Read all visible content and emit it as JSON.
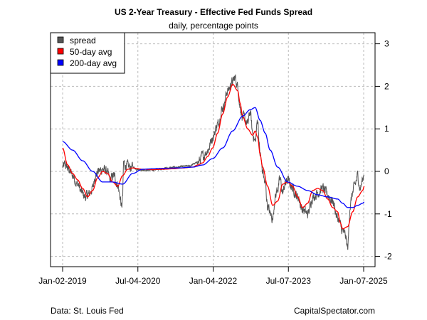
{
  "chart_data": {
    "type": "line",
    "title": "US 2-Year Treasury - Effective Fed Funds Spread",
    "subtitle": "daily, percentage points",
    "xlabel": "",
    "ylabel": "",
    "ylim": [
      -2.25,
      3.25
    ],
    "y_ticks": [
      3,
      2,
      1,
      0,
      -1,
      -2
    ],
    "y_tick_labels": [
      "3",
      "2",
      "1",
      "0",
      "-1",
      "-2"
    ],
    "y_axis_side": "right",
    "x_ticks": [
      2019.0,
      2020.505,
      2022.01,
      2023.515,
      2025.02
    ],
    "x_tick_labels": [
      "Jan-02-2019",
      "Jul-04-2020",
      "Jan-04-2022",
      "Jul-07-2023",
      "Jan-07-2025"
    ],
    "xlim": [
      2018.75,
      2025.25
    ],
    "grid": true,
    "legend_position": "top-left",
    "series": [
      {
        "name": "spread",
        "color": "#555555",
        "x": [
          2019.0,
          2019.05,
          2019.12,
          2019.2,
          2019.3,
          2019.38,
          2019.45,
          2019.52,
          2019.6,
          2019.65,
          2019.72,
          2019.8,
          2019.88,
          2019.95,
          2020.02,
          2020.1,
          2020.15,
          2020.18,
          2020.2,
          2020.22,
          2020.26,
          2020.32,
          2020.4,
          2020.5,
          2020.7,
          2020.9,
          2021.1,
          2021.3,
          2021.5,
          2021.7,
          2021.8,
          2021.9,
          2022.0,
          2022.1,
          2022.2,
          2022.3,
          2022.4,
          2022.45,
          2022.5,
          2022.55,
          2022.6,
          2022.65,
          2022.7,
          2022.75,
          2022.8,
          2022.85,
          2022.9,
          2022.95,
          2023.0,
          2023.05,
          2023.1,
          2023.15,
          2023.2,
          2023.25,
          2023.3,
          2023.35,
          2023.4,
          2023.45,
          2023.5,
          2023.55,
          2023.6,
          2023.7,
          2023.8,
          2023.9,
          2024.0,
          2024.1,
          2024.2,
          2024.3,
          2024.4,
          2024.5,
          2024.6,
          2024.65,
          2024.7,
          2024.75,
          2024.8,
          2024.85,
          2024.9,
          2024.95,
          2025.0,
          2025.03
        ],
        "values": [
          0.1,
          0.15,
          0.05,
          -0.1,
          -0.3,
          -0.5,
          -0.6,
          -0.55,
          -0.4,
          -0.1,
          0.0,
          0.05,
          0.0,
          -0.2,
          -0.1,
          -0.3,
          -0.6,
          -0.85,
          -0.6,
          0.2,
          0.15,
          0.1,
          0.1,
          0.05,
          0.02,
          0.05,
          0.08,
          0.1,
          0.12,
          0.2,
          0.35,
          0.5,
          0.8,
          1.1,
          1.5,
          1.9,
          2.1,
          2.2,
          2.0,
          1.5,
          1.3,
          1.2,
          1.1,
          1.4,
          0.9,
          0.7,
          1.2,
          0.4,
          0.0,
          -0.3,
          -0.8,
          -1.0,
          -1.1,
          -0.6,
          -0.4,
          -0.2,
          -0.5,
          -0.3,
          -0.2,
          -0.3,
          -0.4,
          -0.6,
          -0.9,
          -1.0,
          -0.6,
          -0.5,
          -0.4,
          -0.55,
          -0.7,
          -1.1,
          -1.4,
          -1.5,
          -1.8,
          -0.8,
          -0.5,
          -0.3,
          -0.1,
          -0.4,
          -0.2,
          0.0
        ]
      },
      {
        "name": "50-day avg",
        "color": "#ff0000",
        "x": [
          2019.0,
          2019.1,
          2019.2,
          2019.3,
          2019.4,
          2019.5,
          2019.6,
          2019.7,
          2019.8,
          2019.9,
          2020.0,
          2020.1,
          2020.2,
          2020.3,
          2020.4,
          2020.6,
          2020.8,
          2021.0,
          2021.2,
          2021.4,
          2021.6,
          2021.7,
          2021.8,
          2021.9,
          2022.0,
          2022.1,
          2022.2,
          2022.3,
          2022.4,
          2022.5,
          2022.55,
          2022.6,
          2022.7,
          2022.8,
          2022.85,
          2022.9,
          2022.95,
          2023.0,
          2023.1,
          2023.2,
          2023.3,
          2023.4,
          2023.5,
          2023.6,
          2023.7,
          2023.8,
          2023.9,
          2024.0,
          2024.1,
          2024.2,
          2024.3,
          2024.4,
          2024.5,
          2024.55,
          2024.6,
          2024.7,
          2024.8,
          2024.9,
          2025.0,
          2025.03
        ],
        "values": [
          0.55,
          0.15,
          -0.05,
          -0.2,
          -0.4,
          -0.6,
          -0.45,
          -0.15,
          0.0,
          -0.05,
          -0.25,
          -0.35,
          -0.1,
          0.05,
          0.08,
          0.05,
          0.04,
          0.05,
          0.06,
          0.08,
          0.1,
          0.15,
          0.2,
          0.35,
          0.55,
          0.9,
          1.35,
          1.75,
          2.05,
          1.9,
          1.6,
          1.3,
          1.0,
          0.85,
          0.95,
          0.8,
          0.4,
          0.1,
          -0.35,
          -0.8,
          -0.7,
          -0.3,
          -0.25,
          -0.35,
          -0.6,
          -0.85,
          -0.75,
          -0.45,
          -0.4,
          -0.45,
          -0.65,
          -0.85,
          -0.95,
          -1.2,
          -1.35,
          -1.3,
          -0.95,
          -0.6,
          -0.45,
          -0.35
        ]
      },
      {
        "name": "200-day avg",
        "color": "#0000ff",
        "x": [
          2019.0,
          2019.2,
          2019.4,
          2019.6,
          2019.8,
          2020.0,
          2020.2,
          2020.4,
          2020.6,
          2020.8,
          2021.0,
          2021.3,
          2021.6,
          2021.8,
          2022.0,
          2022.2,
          2022.4,
          2022.6,
          2022.75,
          2022.85,
          2022.95,
          2023.05,
          2023.15,
          2023.3,
          2023.5,
          2023.7,
          2023.9,
          2024.1,
          2024.3,
          2024.5,
          2024.6,
          2024.7,
          2024.8,
          2024.9,
          2025.0,
          2025.03
        ],
        "values": [
          0.7,
          0.5,
          0.25,
          0.0,
          -0.25,
          -0.25,
          -0.3,
          -0.05,
          0.05,
          0.06,
          0.07,
          0.08,
          0.1,
          0.15,
          0.3,
          0.55,
          0.95,
          1.3,
          1.45,
          1.5,
          1.2,
          0.9,
          0.5,
          0.1,
          -0.25,
          -0.35,
          -0.45,
          -0.55,
          -0.6,
          -0.65,
          -0.75,
          -0.85,
          -0.85,
          -0.8,
          -0.75,
          -0.72
        ]
      }
    ]
  },
  "footer": {
    "source": "Data: St. Louis Fed",
    "brand": "CapitalSpectator.com"
  }
}
